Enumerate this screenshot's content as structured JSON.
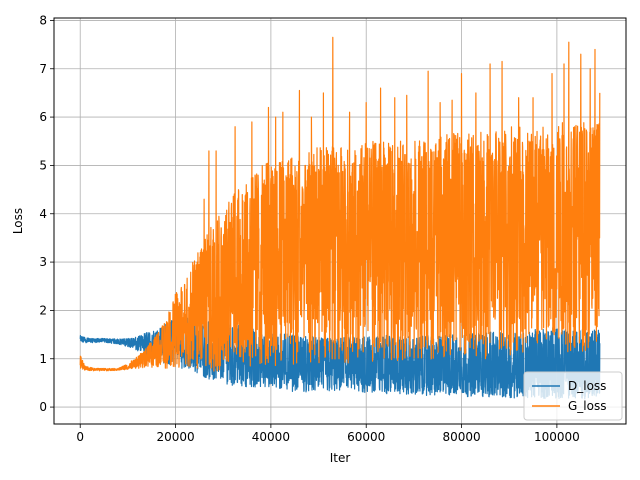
{
  "chart_data": {
    "type": "line",
    "title": "",
    "xlabel": "Iter",
    "ylabel": "Loss",
    "xlim": [
      -5500,
      114500
    ],
    "ylim": [
      -0.35,
      8.05
    ],
    "xticks": [
      0,
      20000,
      40000,
      60000,
      80000,
      100000
    ],
    "xtick_labels": [
      "0",
      "20000",
      "40000",
      "60000",
      "80000",
      "100000"
    ],
    "yticks": [
      0,
      1,
      2,
      3,
      4,
      5,
      6,
      7,
      8
    ],
    "ytick_labels": [
      "0",
      "1",
      "2",
      "3",
      "4",
      "5",
      "6",
      "7",
      "8"
    ],
    "grid": true,
    "legend": "lower-right",
    "series": [
      {
        "name": "D_loss",
        "color": "#1f77b4",
        "envelope": {
          "x": [
            0,
            2000,
            5000,
            8000,
            10000,
            12000,
            14000,
            16000,
            18000,
            20000,
            22000,
            24000,
            26000,
            28000,
            30000,
            32000,
            35000,
            38000,
            40000,
            45000,
            50000,
            55000,
            60000,
            65000,
            70000,
            75000,
            80000,
            85000,
            90000,
            95000,
            100000,
            105000,
            109000
          ],
          "upper": [
            1.48,
            1.42,
            1.42,
            1.41,
            1.42,
            1.45,
            1.55,
            1.6,
            1.75,
            1.85,
            1.9,
            1.85,
            1.8,
            1.75,
            1.7,
            1.7,
            1.7,
            1.6,
            1.55,
            1.5,
            1.45,
            1.45,
            1.45,
            1.5,
            1.45,
            1.5,
            1.5,
            1.55,
            1.55,
            1.6,
            1.65,
            1.6,
            1.6
          ],
          "lower": [
            1.33,
            1.33,
            1.34,
            1.3,
            1.25,
            1.15,
            1.05,
            0.95,
            0.88,
            0.85,
            0.78,
            0.72,
            0.62,
            0.52,
            0.48,
            0.45,
            0.42,
            0.38,
            0.36,
            0.32,
            0.3,
            0.3,
            0.28,
            0.27,
            0.25,
            0.23,
            0.22,
            0.2,
            0.19,
            0.18,
            0.18,
            0.17,
            0.17
          ],
          "center": [
            1.38,
            1.38,
            1.38,
            1.36,
            1.33,
            1.3,
            1.3,
            1.28,
            1.3,
            1.32,
            1.2,
            1.1,
            1.05,
            1.0,
            0.98,
            0.95,
            0.9,
            0.88,
            0.85,
            0.8,
            0.75,
            0.72,
            0.7,
            0.7,
            0.68,
            0.66,
            0.65,
            0.65,
            0.64,
            0.64,
            0.65,
            0.65,
            0.65
          ]
        }
      },
      {
        "name": "G_loss",
        "color": "#ff7f0e",
        "envelope": {
          "x": [
            0,
            1000,
            3000,
            6000,
            8000,
            10000,
            12000,
            14000,
            16000,
            18000,
            20000,
            22000,
            24000,
            26000,
            28000,
            30000,
            32000,
            35000,
            38000,
            40000,
            45000,
            50000,
            55000,
            60000,
            65000,
            70000,
            75000,
            80000,
            85000,
            90000,
            95000,
            100000,
            105000,
            109000
          ],
          "upper": [
            1.1,
            0.85,
            0.8,
            0.8,
            0.8,
            0.9,
            1.05,
            1.25,
            1.5,
            1.8,
            2.35,
            2.6,
            3.1,
            3.6,
            3.9,
            4.2,
            4.4,
            4.7,
            5.0,
            5.1,
            5.3,
            5.4,
            5.4,
            5.5,
            5.5,
            5.6,
            5.6,
            5.7,
            5.7,
            5.8,
            5.8,
            5.9,
            5.9,
            6.0
          ],
          "lower": [
            0.8,
            0.76,
            0.75,
            0.75,
            0.76,
            0.78,
            0.8,
            0.82,
            0.82,
            0.8,
            0.8,
            0.78,
            0.75,
            0.72,
            0.7,
            0.72,
            0.75,
            0.78,
            0.8,
            0.82,
            0.85,
            0.88,
            0.9,
            0.92,
            0.95,
            0.95,
            0.98,
            1.0,
            1.0,
            1.05,
            1.1,
            1.1,
            1.15,
            1.2
          ],
          "center": [
            0.85,
            0.8,
            0.78,
            0.78,
            0.78,
            0.82,
            0.9,
            1.0,
            1.1,
            1.25,
            1.45,
            1.6,
            1.8,
            2.0,
            2.2,
            2.35,
            2.5,
            2.65,
            2.8,
            2.85,
            3.0,
            3.1,
            3.15,
            3.2,
            3.25,
            3.3,
            3.3,
            3.35,
            3.4,
            3.45,
            3.5,
            3.5,
            3.55,
            3.6
          ]
        },
        "spikes": [
          [
            26000,
            4.3
          ],
          [
            27000,
            5.3
          ],
          [
            28500,
            5.3
          ],
          [
            32500,
            5.8
          ],
          [
            36000,
            5.9
          ],
          [
            39500,
            6.2
          ],
          [
            41000,
            6.0
          ],
          [
            42500,
            6.1
          ],
          [
            46000,
            6.55
          ],
          [
            48500,
            6.0
          ],
          [
            51000,
            6.5
          ],
          [
            53000,
            7.65
          ],
          [
            56500,
            6.1
          ],
          [
            60000,
            6.3
          ],
          [
            63000,
            6.6
          ],
          [
            66000,
            6.4
          ],
          [
            68500,
            6.45
          ],
          [
            73000,
            6.95
          ],
          [
            75500,
            6.3
          ],
          [
            78000,
            6.35
          ],
          [
            80000,
            6.9
          ],
          [
            83000,
            6.5
          ],
          [
            86000,
            7.1
          ],
          [
            88500,
            7.15
          ],
          [
            92000,
            6.4
          ],
          [
            95000,
            6.4
          ],
          [
            99000,
            6.9
          ],
          [
            101500,
            7.1
          ],
          [
            102500,
            7.55
          ],
          [
            105000,
            7.3
          ],
          [
            107000,
            7.0
          ],
          [
            108000,
            7.4
          ],
          [
            109000,
            6.5
          ]
        ]
      }
    ]
  }
}
